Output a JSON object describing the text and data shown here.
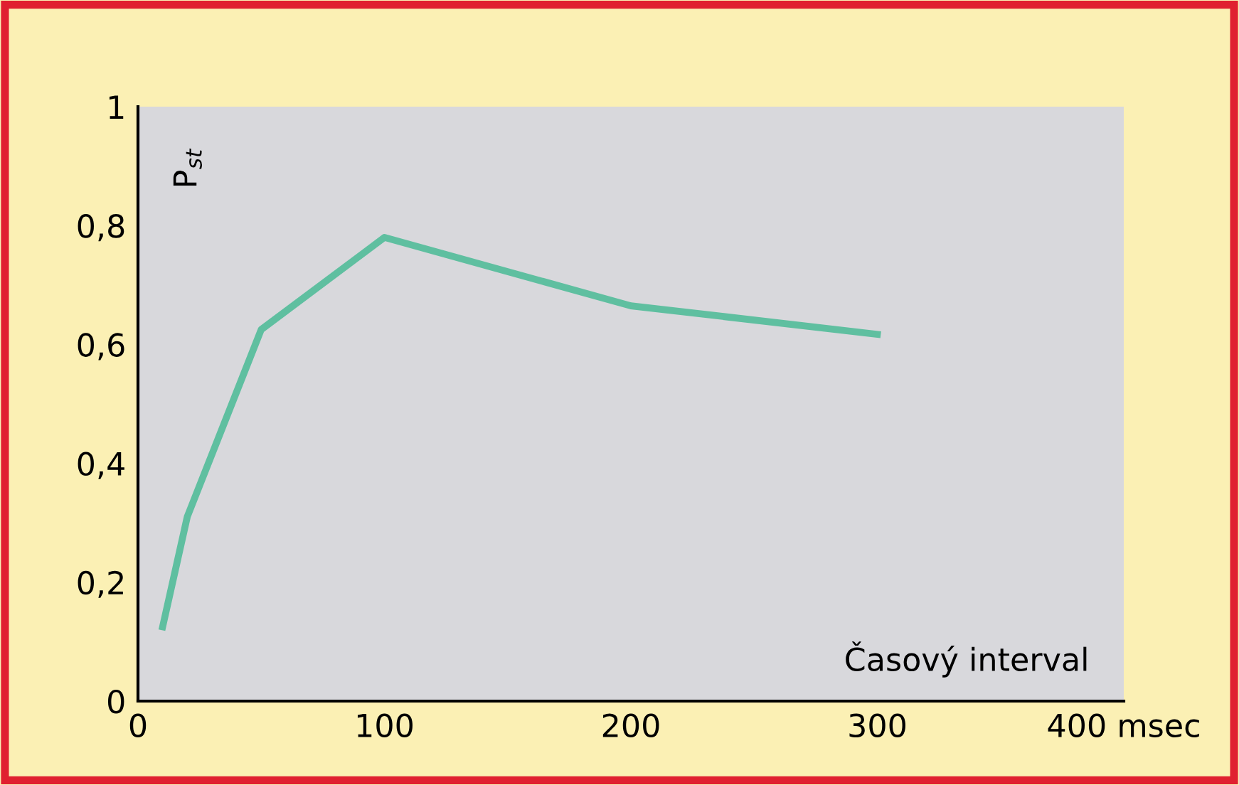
{
  "chart_data": {
    "type": "line",
    "xlabel": "Časový interval",
    "ylabel": "P$_{st}$",
    "x": [
      10,
      20,
      50,
      100,
      200,
      300
    ],
    "series": [
      {
        "color": "#5fbfa0",
        "values": [
          0.125,
          0.31,
          0.625,
          0.78,
          0.665,
          0.617
        ]
      }
    ],
    "xlim": [
      0,
      400
    ],
    "xticks": [
      0,
      100,
      200,
      300,
      {
        "value": 400,
        "label": "400 msec"
      }
    ],
    "ylim": [
      0,
      1
    ],
    "yticks": [
      {
        "value": 0,
        "label": "0"
      },
      {
        "value": 0.2,
        "label": "0,2"
      },
      {
        "value": 0.4,
        "label": "0,4"
      },
      {
        "value": 0.6,
        "label": "0,6"
      },
      {
        "value": 0.8,
        "label": "0,8"
      },
      {
        "value": 1,
        "label": "1"
      }
    ],
    "grid": false,
    "legend": false,
    "marker": "none",
    "line_style": "solid"
  }
}
